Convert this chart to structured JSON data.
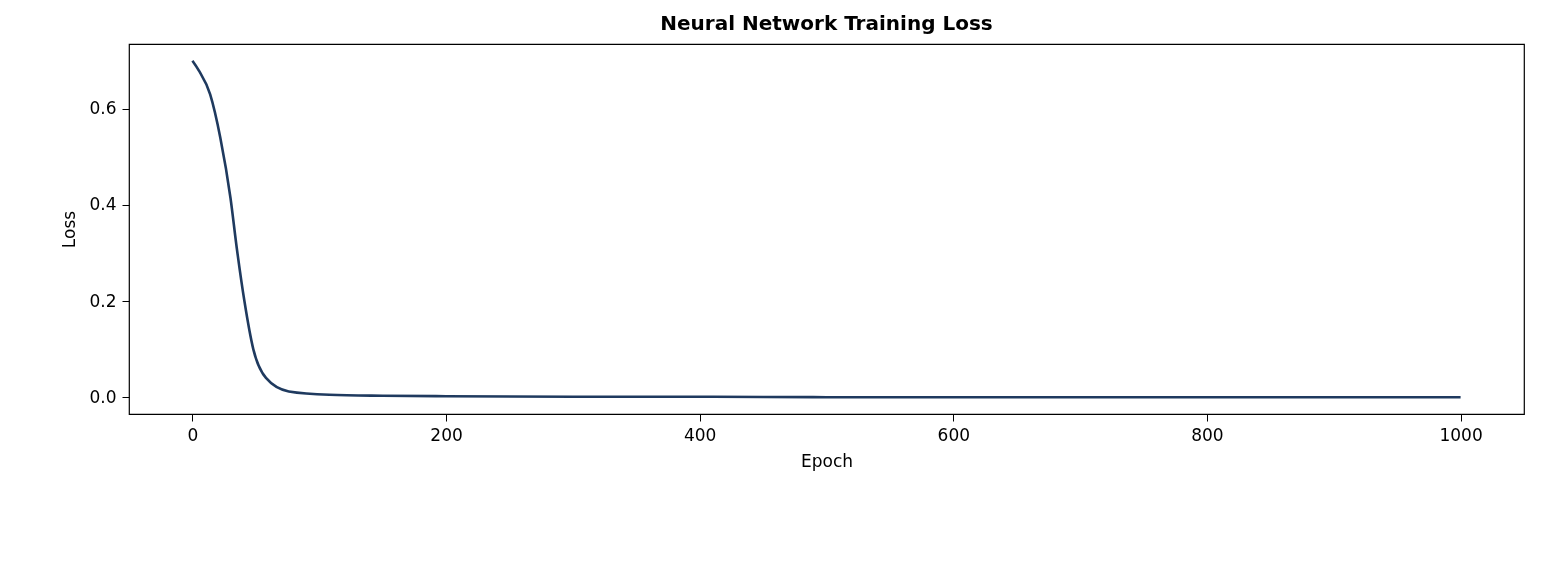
{
  "chart_data": {
    "type": "line",
    "title": "Neural Network Training Loss",
    "xlabel": "Epoch",
    "ylabel": "Loss",
    "x": [
      0,
      5,
      14,
      22,
      30,
      35,
      41,
      48,
      58,
      76,
      108,
      150,
      200,
      300,
      400,
      500,
      600,
      700,
      800,
      900,
      1000
    ],
    "series": [
      {
        "color": "#1f3a5f",
        "values": [
          0.7,
          0.68,
          0.63,
          0.54,
          0.415,
          0.31,
          0.2,
          0.1,
          0.04,
          0.012,
          0.005,
          0.003,
          0.002,
          0.001,
          0.001,
          0.0,
          0.0,
          0.0,
          0.0,
          0.0,
          0.0
        ]
      }
    ],
    "xlim": [
      -50,
      1050
    ],
    "xticks": [
      0,
      200,
      400,
      600,
      800,
      1000
    ],
    "ylim": [
      -0.035,
      0.735
    ],
    "yticks": [
      {
        "value": 0,
        "label": "0.0"
      },
      {
        "value": 0.2,
        "label": "0.2"
      },
      {
        "value": 0.4,
        "label": "0.4"
      },
      {
        "value": 0.6,
        "label": "0.6"
      }
    ],
    "grid": false,
    "marker": "none",
    "line_style": "solid"
  }
}
